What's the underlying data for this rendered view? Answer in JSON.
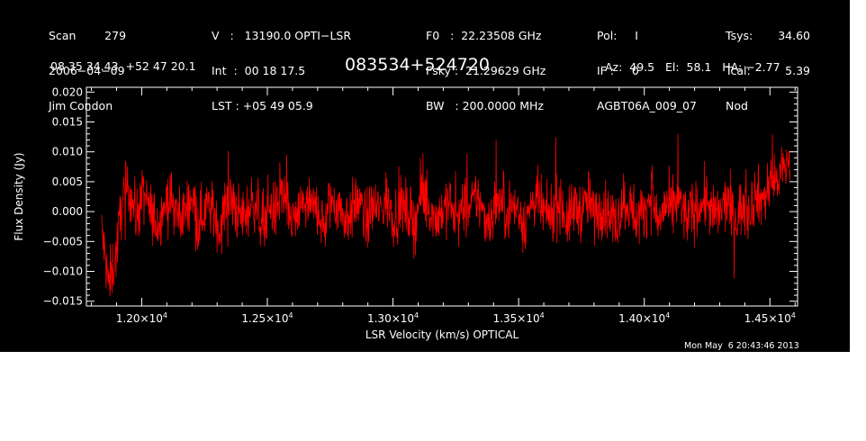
{
  "header": {
    "col1": [
      "Scan        279",
      "2006−04−09",
      "Jim Condon"
    ],
    "col2": [
      "V   :   13190.0 OPTI−LSR",
      "Int  :  00 18 17.5",
      "LST : +05 49 05.9"
    ],
    "col3": [
      "F0   :  22.23508 GHz",
      "Fsky :  21.29629 GHz",
      "BW   : 200.0000 MHz"
    ],
    "col4": [
      "Pol:     I",
      "IF :     0",
      "AGBT06A_009_07"
    ],
    "col5_labels": [
      "Tsys:",
      "Tcal:",
      "Nod"
    ],
    "col5_values": [
      "34.60",
      "5.39",
      ""
    ],
    "coords": "08 35 34.43  +52 47 20.1",
    "source": "083534+524720",
    "azel": "Az:  49.5   El:  58.1   HA: −2.77"
  },
  "timestamp": "Mon May  6 20:43:46 2013",
  "chart_data": {
    "type": "line",
    "title": "083534+524720",
    "xlabel": "LSR Velocity (km/s) OPTICAL",
    "ylabel": "Flux Density (Jy)",
    "xlim": [
      11780,
      14610
    ],
    "ylim": [
      -0.0158,
      0.0208
    ],
    "x_ticks": [
      12000,
      12500,
      13000,
      13500,
      14000,
      14500
    ],
    "x_tick_labels": [
      "1.20×10",
      "1.25×10",
      "1.30×10",
      "1.35×10",
      "1.40×10",
      "1.45×10"
    ],
    "x_tick_exponent": "4",
    "y_ticks": [
      -0.015,
      -0.01,
      -0.005,
      0.0,
      0.005,
      0.01,
      0.015,
      0.02
    ],
    "y_tick_labels": [
      "−0.015",
      "−0.010",
      "−0.005",
      "0.000",
      "0.005",
      "0.010",
      "0.015",
      "0.020"
    ],
    "grid": false,
    "series": [
      {
        "color": "#ff0000",
        "x_start": 11840,
        "x_end": 14580,
        "values": [
          -0.003,
          -0.012,
          -0.008,
          0.002,
          0.004,
          -0.001,
          0.003,
          0.0,
          -0.002,
          0.001,
          0.002,
          -0.001,
          0.0,
          0.003,
          -0.002,
          0.001,
          0.0,
          -0.003,
          0.002,
          0.001,
          -0.001,
          0.0,
          0.002,
          -0.002,
          0.001,
          0.0,
          0.003,
          -0.001,
          -0.002,
          0.002,
          0.0,
          0.001,
          -0.003,
          0.002,
          0.001,
          -0.001,
          0.0,
          0.002,
          -0.002,
          0.001,
          0.0,
          0.002,
          -0.001,
          0.001,
          0.0,
          -0.002,
          0.003,
          0.001,
          -0.001,
          0.0,
          0.002,
          -0.002,
          0.001,
          0.0,
          0.003,
          -0.001,
          -0.001,
          0.002,
          0.0,
          0.001,
          0.0,
          -0.002,
          0.002,
          0.001,
          -0.001,
          0.0,
          0.002,
          -0.002,
          0.001,
          0.0,
          0.002,
          -0.001,
          0.001,
          0.0,
          -0.002,
          0.002,
          0.001,
          -0.001,
          0.0,
          0.003,
          -0.002,
          0.001,
          0.0,
          0.002,
          -0.001,
          0.0,
          0.001,
          0.002,
          -0.001,
          0.0,
          0.002,
          -0.002,
          0.001,
          0.0,
          0.003,
          0.002,
          0.004,
          0.005,
          0.007,
          0.009
        ]
      }
    ]
  }
}
